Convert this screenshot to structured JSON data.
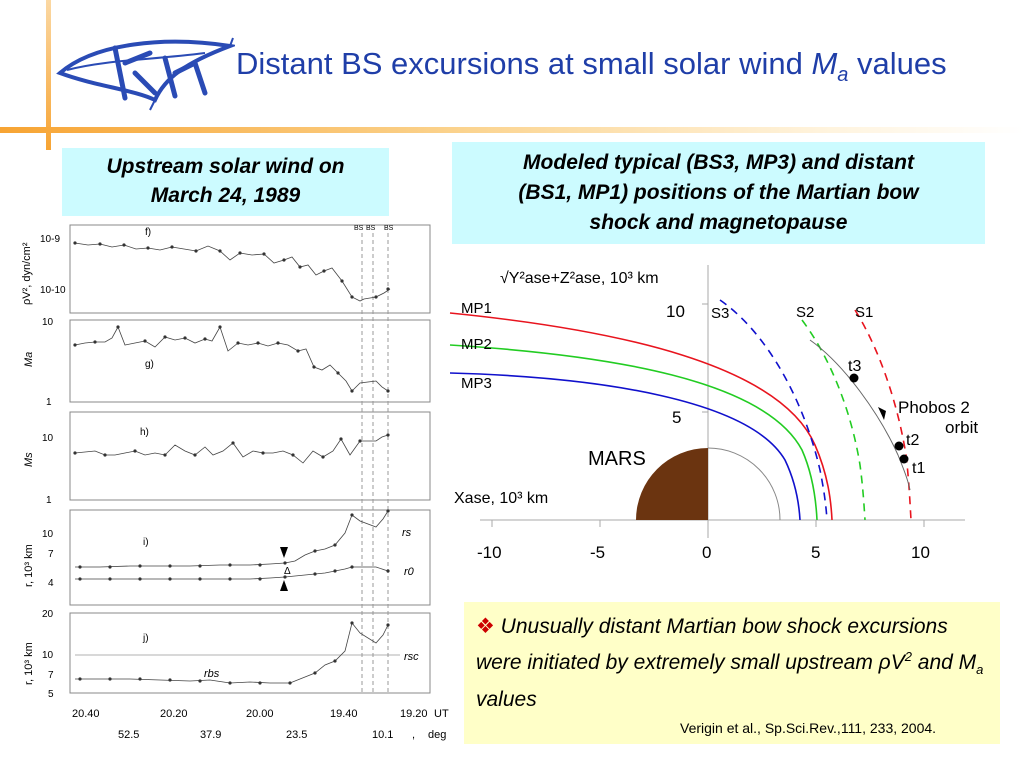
{
  "slide": {
    "title_main": "Distant BS excursions at small solar wind ",
    "title_var": "M",
    "title_sub": "a",
    "title_end": " values"
  },
  "upstream_box": {
    "line1": "Upstream solar wind on",
    "line2": "March 24, 1989"
  },
  "model_box": {
    "line1": "Modeled typical (BS3, MP3) and distant",
    "line2": "(BS1, MP1) positions of the Martian bow",
    "line3": "shock and magnetopause"
  },
  "left_panels": {
    "bs_marks": [
      "BS",
      "BS",
      "BS"
    ],
    "panel_f": {
      "label": "f)",
      "ylabel": "ρV², dyn/cm²",
      "ticks": [
        "10-9",
        "10-10"
      ]
    },
    "panel_g": {
      "label": "g)",
      "ylabel": "Ma",
      "ticks": [
        "10",
        "1"
      ]
    },
    "panel_h": {
      "label": "h)",
      "ylabel": "Ms",
      "ticks": [
        "10",
        "1"
      ]
    },
    "panel_i": {
      "label": "i)",
      "ylabel": "r, 10³ km",
      "ticks": [
        "10",
        "7",
        "4"
      ],
      "curve_labels": [
        "rs",
        "r0"
      ],
      "delta": "Δ"
    },
    "panel_j": {
      "label": "j)",
      "ylabel": "r, 10³ km",
      "ticks": [
        "20",
        "10",
        "7",
        "5"
      ],
      "curve_labels": [
        "rsc",
        "rbs"
      ]
    },
    "x_time_ticks": [
      "20.40",
      "20.20",
      "20.00",
      "19.40",
      "19.20",
      "UT"
    ],
    "x_deg_ticks": [
      "52.5",
      "37.9",
      "23.5",
      "10.1",
      ",",
      "deg"
    ]
  },
  "right_diagram": {
    "y_axis_label": "√Y²ase+Z²ase, 10³ km",
    "x_axis_label": "Xase, 10³ km",
    "y_ticks": [
      "10",
      "5"
    ],
    "x_ticks": [
      "-10",
      "-5",
      "0",
      "5",
      "10"
    ],
    "mp_labels": [
      "MP1",
      "MP2",
      "MP3"
    ],
    "s_labels": [
      "S3",
      "S2",
      "S1"
    ],
    "t_labels": [
      "t3",
      "t2",
      "t1"
    ],
    "mars_label": "MARS",
    "orbit_label_1": "Phobos 2",
    "orbit_label_2": "orbit",
    "colors": {
      "mp1": "#e8141e",
      "mp2": "#22cc22",
      "mp3": "#1010cc",
      "mars": "#6b3410",
      "title": "#1f3ea8"
    }
  },
  "conclusion": {
    "text_a": "Unusually distant Martian bow shock excursions were initiated by extremely small upstream ",
    "rho": "ρ",
    "text_b": "V",
    "text_c": " and M",
    "text_d": "a",
    "text_e": " values",
    "bullet_icon": "diamond-bullet-icon"
  },
  "reference": "Verigin et al., Sp.Sci.Rev.,111, 233, 2004."
}
